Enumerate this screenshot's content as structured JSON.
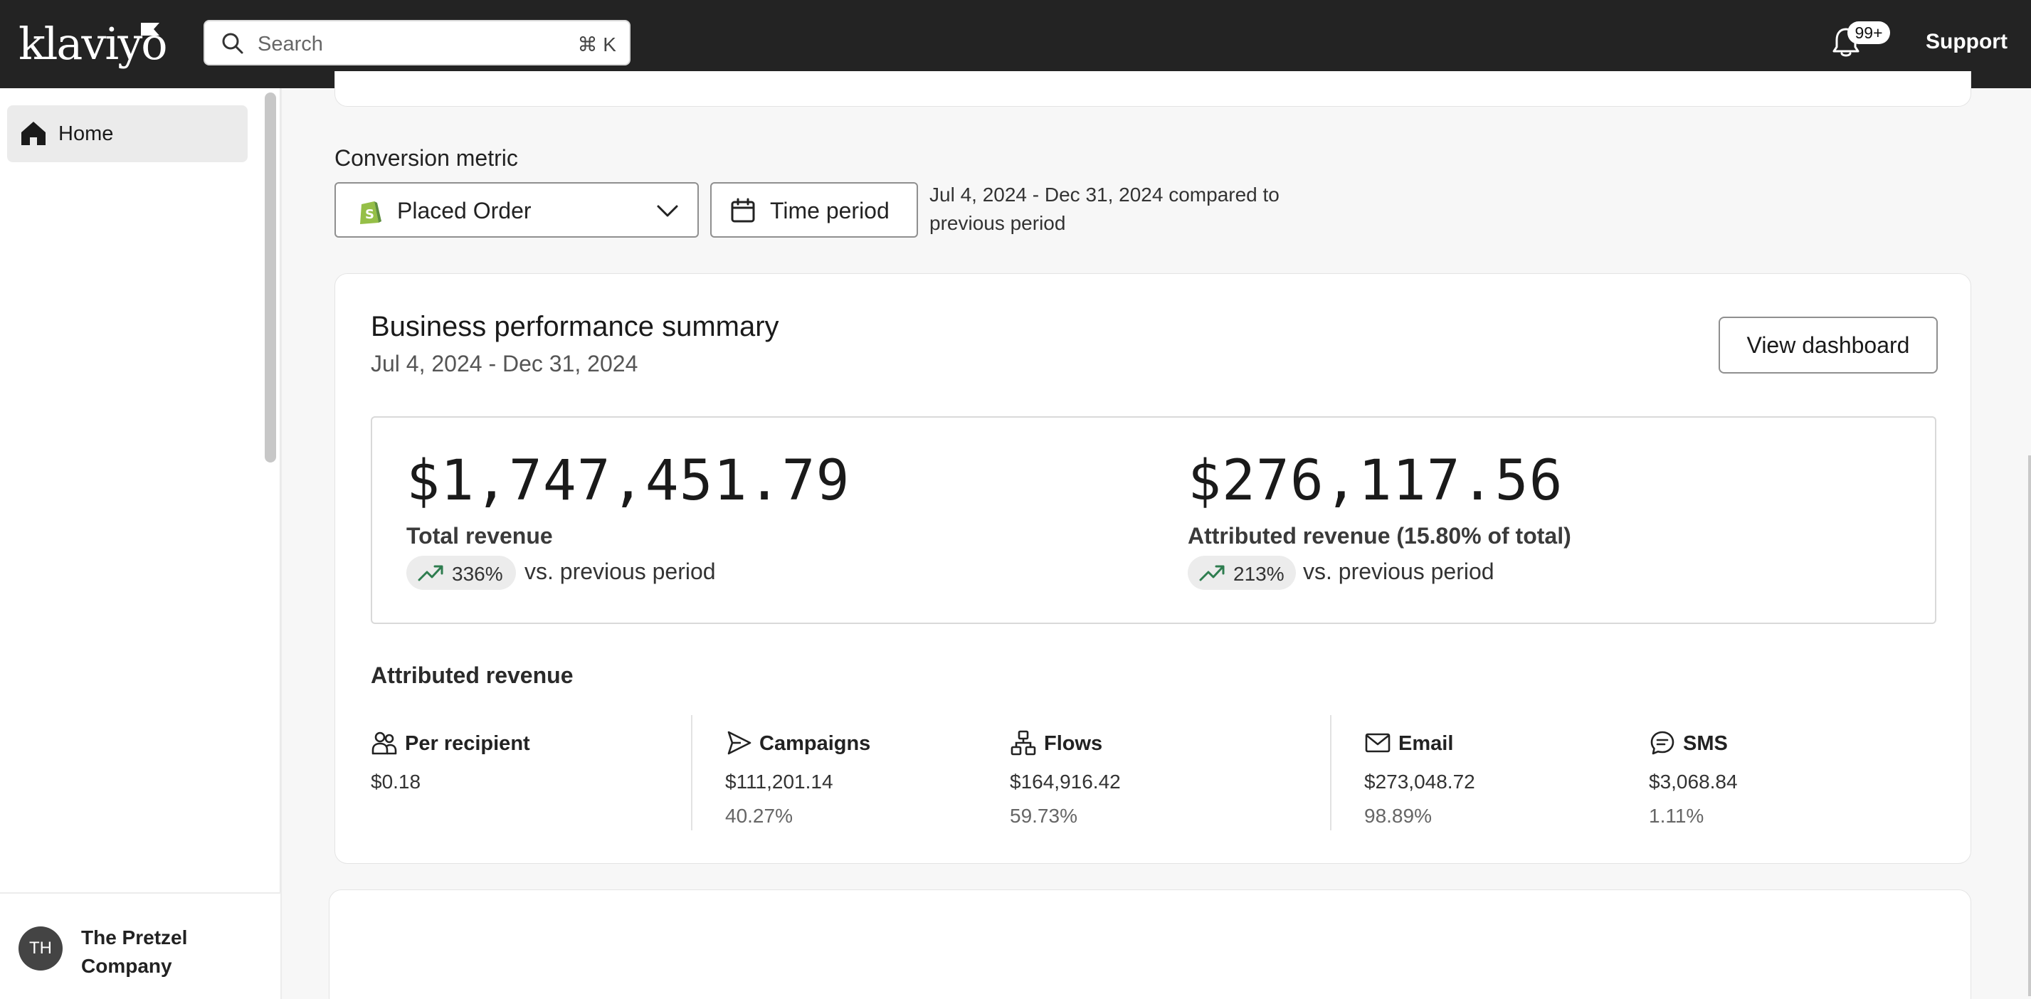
{
  "header": {
    "logo_text": "klaviyo",
    "search_placeholder": "Search",
    "search_shortcut": "⌘ K",
    "notification_count": "99+",
    "support_label": "Support"
  },
  "sidebar": {
    "items": [
      {
        "label": "Home",
        "icon": "home-icon"
      }
    ],
    "account": {
      "initials": "TH",
      "name": "The Pretzel Company"
    }
  },
  "filters": {
    "metric_label": "Conversion metric",
    "metric_value": "Placed Order",
    "time_period_label": "Time period",
    "period_text": "Jul 4, 2024 - Dec 31, 2024 compared to previous period"
  },
  "summary": {
    "title": "Business performance summary",
    "dates": "Jul 4, 2024 - Dec 31, 2024",
    "view_button": "View dashboard",
    "total": {
      "amount": "$1,747,451.79",
      "label": "Total revenue",
      "change": "336%",
      "compare": "vs. previous period"
    },
    "attributed": {
      "amount": "$276,117.56",
      "label": "Attributed revenue (15.80% of total)",
      "change": "213%",
      "compare": "vs. previous period"
    },
    "attributed_section_title": "Attributed revenue",
    "stats": [
      {
        "name": "Per recipient",
        "value": "$0.18",
        "share": "",
        "icon": "recipients-icon"
      },
      {
        "name": "Campaigns",
        "value": "$111,201.14",
        "share": "40.27%",
        "icon": "send-icon"
      },
      {
        "name": "Flows",
        "value": "$164,916.42",
        "share": "59.73%",
        "icon": "flow-icon"
      },
      {
        "name": "Email",
        "value": "$273,048.72",
        "share": "98.89%",
        "icon": "mail-icon"
      },
      {
        "name": "SMS",
        "value": "$3,068.84",
        "share": "1.11%",
        "icon": "sms-icon"
      }
    ]
  },
  "colors": {
    "topbar": "#232323",
    "trend_up": "#2e7d4f",
    "shopify_green": "#95bf47"
  }
}
